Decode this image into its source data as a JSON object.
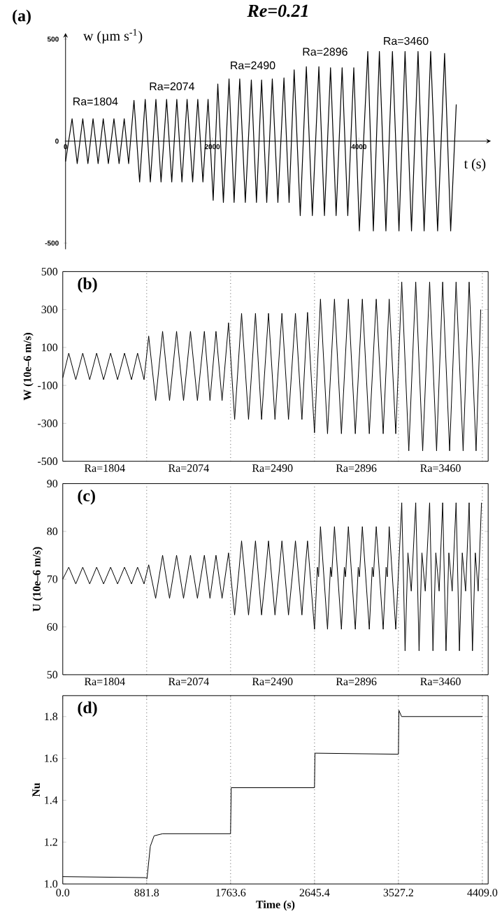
{
  "chart_data": [
    {
      "type": "line",
      "title": "Re=0.21",
      "xlabel": "t (s)",
      "ylabel": "w (µm s$^{-1}$)",
      "color": "#000000",
      "xlim": [
        0,
        5800
      ],
      "ylim": [
        -530,
        530
      ],
      "xticks": [
        0,
        2000,
        4000
      ],
      "yticks": [
        -500,
        0,
        500
      ],
      "x": [
        0,
        89,
        159,
        235,
        305,
        375,
        444,
        514,
        584,
        660,
        730,
        800,
        860,
        933,
        1010,
        1086,
        1156,
        1232,
        1302,
        1378,
        1448,
        1517,
        1587,
        1657,
        1733,
        1803,
        1873,
        1943,
        2013,
        2076,
        2152,
        2229,
        2298,
        2375,
        2451,
        2533,
        2603,
        2673,
        2743,
        2819,
        2895,
        2978,
        3048,
        3117,
        3200,
        3283,
        3365,
        3454,
        3530,
        3613,
        3689,
        3771,
        3848,
        3930,
        4006,
        4121,
        4197,
        4279,
        4368,
        4457,
        4546,
        4629,
        4717,
        4806,
        4889,
        4978,
        5073,
        5168,
        5251,
        5327
      ],
      "values": [
        -100,
        110,
        -110,
        110,
        -110,
        110,
        -110,
        110,
        -110,
        110,
        -110,
        110,
        -110,
        200,
        -200,
        205,
        -200,
        205,
        -200,
        205,
        -200,
        205,
        -200,
        205,
        -200,
        205,
        -200,
        205,
        -290,
        280,
        -300,
        305,
        -300,
        305,
        -300,
        300,
        -300,
        300,
        -300,
        305,
        -300,
        310,
        -300,
        350,
        -365,
        365,
        -365,
        365,
        -365,
        360,
        -365,
        360,
        -365,
        360,
        -440,
        440,
        -440,
        440,
        -440,
        440,
        -440,
        440,
        -440,
        440,
        -440,
        440,
        -440,
        430,
        -440,
        180
      ],
      "annotations": [
        "(a)",
        "Ra=1804",
        "Ra=2074",
        "Ra=2490",
        "Ra=2896",
        "Ra=3460"
      ]
    },
    {
      "type": "line",
      "ylabel": "W (10e–6 m/s)",
      "color": "#000000",
      "xlim": [
        0,
        4470
      ],
      "ylim": [
        -500,
        500
      ],
      "tick_labels": "y",
      "yticks": [
        -500,
        -300,
        -100,
        100,
        300,
        500
      ],
      "x": [
        0,
        63,
        137,
        210,
        283,
        356,
        429,
        503,
        576,
        649,
        722,
        786,
        854,
        903,
        976,
        1049,
        1122,
        1196,
        1269,
        1342,
        1415,
        1488,
        1547,
        1610,
        1674,
        1742,
        1806,
        1879,
        1952,
        2025,
        2089,
        2162,
        2230,
        2303,
        2372,
        2445,
        2513,
        2572,
        2645,
        2708,
        2782,
        2855,
        2928,
        3001,
        3074,
        3148,
        3221,
        3294,
        3367,
        3430,
        3499,
        3562,
        3636,
        3709,
        3782,
        3855,
        3928,
        3992,
        4065,
        4133,
        4207,
        4270,
        4343,
        4392
      ],
      "values": [
        -60,
        70,
        -70,
        70,
        -70,
        70,
        -70,
        70,
        -70,
        70,
        -70,
        70,
        -70,
        160,
        -180,
        185,
        -180,
        185,
        -180,
        185,
        -180,
        185,
        -180,
        185,
        -180,
        230,
        -280,
        280,
        -280,
        280,
        -280,
        280,
        -280,
        280,
        -280,
        280,
        -280,
        285,
        -350,
        355,
        -355,
        355,
        -355,
        355,
        -355,
        355,
        -355,
        355,
        -355,
        355,
        -355,
        445,
        -445,
        445,
        -445,
        445,
        -445,
        445,
        -445,
        445,
        -445,
        445,
        -445,
        300
      ],
      "annotations": [
        "(b)",
        "Ra=1804",
        "Ra=2074",
        "Ra=2490",
        "Ra=2896",
        "Ra=3460"
      ],
      "ref_lines": [
        {
          "axis": "x",
          "value": 881.8,
          "line_style": "dotted"
        },
        {
          "axis": "x",
          "value": 1763.6,
          "line_style": "dotted"
        },
        {
          "axis": "x",
          "value": 2645.4,
          "line_style": "dotted"
        },
        {
          "axis": "x",
          "value": 3527.2,
          "line_style": "dotted"
        },
        {
          "axis": "x",
          "value": 4409,
          "line_style": "dotted"
        }
      ]
    },
    {
      "type": "line",
      "ylabel": "U (10e–6 m/s)",
      "color": "#000000",
      "xlim": [
        0,
        4470
      ],
      "ylim": [
        50,
        90
      ],
      "tick_labels": "y",
      "yticks": [
        50,
        60,
        70,
        80,
        90
      ],
      "x": [
        0,
        63,
        137,
        210,
        283,
        356,
        429,
        503,
        576,
        649,
        722,
        786,
        854,
        903,
        976,
        1049,
        1122,
        1196,
        1269,
        1342,
        1415,
        1488,
        1547,
        1610,
        1674,
        1742,
        1806,
        1850,
        1879,
        1952,
        1996,
        2025,
        2089,
        2133,
        2162,
        2230,
        2274,
        2303,
        2372,
        2416,
        2445,
        2513,
        2545,
        2572,
        2645,
        2676,
        2688,
        2708,
        2782,
        2813,
        2825,
        2855,
        2928,
        2959,
        2971,
        3001,
        3074,
        3105,
        3117,
        3148,
        3221,
        3252,
        3264,
        3294,
        3367,
        3398,
        3410,
        3430,
        3499,
        3562,
        3597,
        3627,
        3662,
        3709,
        3744,
        3774,
        3809,
        3855,
        3890,
        3920,
        3955,
        3992,
        4027,
        4057,
        4092,
        4133,
        4168,
        4198,
        4233,
        4270,
        4305,
        4335,
        4365,
        4400
      ],
      "values": [
        70,
        72.5,
        69,
        72.5,
        69,
        72.5,
        69,
        72.5,
        69,
        72.5,
        69,
        72.5,
        69,
        73,
        66,
        75,
        66,
        75,
        66,
        75,
        66,
        75,
        66,
        75,
        66,
        75.5,
        62.5,
        71.5,
        78,
        62.5,
        71.5,
        78,
        62.5,
        71.5,
        78,
        62.5,
        71.5,
        78,
        62.5,
        71.5,
        78,
        62.5,
        71.5,
        78,
        59.5,
        72.5,
        70.5,
        81,
        59.5,
        72.5,
        70.5,
        81,
        59.5,
        72.5,
        70.5,
        81,
        59.5,
        72.5,
        70.5,
        81,
        59.5,
        72.5,
        70.5,
        81,
        59.5,
        72.5,
        70.5,
        81,
        59.5,
        86,
        55,
        75.5,
        67.5,
        86,
        55,
        75.5,
        67.5,
        86,
        55,
        75.5,
        67.5,
        86,
        55,
        75.5,
        67.5,
        86,
        55,
        75.5,
        67.5,
        86,
        55,
        75.5,
        67.5,
        86
      ],
      "annotations": [
        "(c)",
        "Ra=1804",
        "Ra=2074",
        "Ra=2490",
        "Ra=2896",
        "Ra=3460"
      ],
      "ref_lines": [
        {
          "axis": "x",
          "value": 881.8,
          "line_style": "dotted"
        },
        {
          "axis": "x",
          "value": 1763.6,
          "line_style": "dotted"
        },
        {
          "axis": "x",
          "value": 2645.4,
          "line_style": "dotted"
        },
        {
          "axis": "x",
          "value": 3527.2,
          "line_style": "dotted"
        },
        {
          "axis": "x",
          "value": 4409,
          "line_style": "dotted"
        }
      ]
    },
    {
      "type": "line",
      "xlabel": "Time (s)",
      "ylabel": "Nu",
      "color": "#000000",
      "xlim": [
        0,
        4470
      ],
      "ylim": [
        1.0,
        1.9
      ],
      "xticks": [
        {
          "value": 0,
          "label": "0.0"
        },
        881.8,
        1763.6,
        2645.4,
        3527.2,
        {
          "value": 4409,
          "label": "4409.0"
        }
      ],
      "yticks": [
        {
          "value": 1.0,
          "label": "1.0"
        },
        1.2,
        1.4,
        1.6,
        1.8
      ],
      "x": [
        0,
        870,
        885,
        920,
        960,
        1050,
        1763,
        1770,
        2645,
        2650,
        3527,
        3532,
        3560,
        4409
      ],
      "values": [
        1.035,
        1.03,
        1.025,
        1.18,
        1.23,
        1.24,
        1.24,
        1.46,
        1.46,
        1.625,
        1.62,
        1.83,
        1.8,
        1.8
      ],
      "annotations": [
        "(d)"
      ],
      "ref_lines": [
        {
          "axis": "x",
          "value": 881.8,
          "line_style": "dotted"
        },
        {
          "axis": "x",
          "value": 1763.6,
          "line_style": "dotted"
        },
        {
          "axis": "x",
          "value": 2645.4,
          "line_style": "dotted"
        },
        {
          "axis": "x",
          "value": 3527.2,
          "line_style": "dotted"
        },
        {
          "axis": "x",
          "value": 4409,
          "line_style": "dotted"
        }
      ]
    }
  ]
}
